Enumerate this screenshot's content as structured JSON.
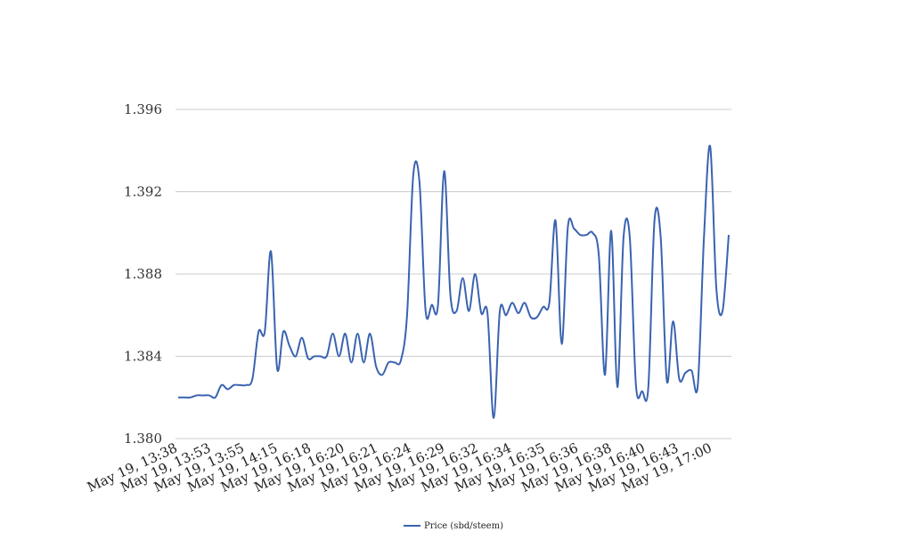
{
  "chart_data": {
    "type": "line",
    "title": "",
    "xlabel": "",
    "ylabel": "",
    "ylim": [
      1.38,
      1.396
    ],
    "yticks": [
      1.38,
      1.384,
      1.388,
      1.392,
      1.396
    ],
    "ytick_labels": [
      "1.380",
      "1.384",
      "1.388",
      "1.392",
      "1.396"
    ],
    "grid": "horizontal",
    "legend_position": "bottom-center",
    "line_color": "#3a63b0",
    "grid_color": "#cccccc",
    "xtick_labels": [
      "May 19, 13:38",
      "May 19, 13:53",
      "May 19, 13:55",
      "May 19, 14:15",
      "May 19, 16:18",
      "May 19, 16:20",
      "May 19, 16:21",
      "May 19, 16:24",
      "May 19, 16:29",
      "May 19, 16:32",
      "May 19, 16:34",
      "May 19, 16:35",
      "May 19, 16:36",
      "May 19, 16:38",
      "May 19, 16:40",
      "May 19, 16:43",
      "May 19, 17:00"
    ],
    "series": [
      {
        "name": "Price (sbd/steem)",
        "values": [
          1.382,
          1.382,
          1.382,
          1.3821,
          1.3821,
          1.3821,
          1.382,
          1.3826,
          1.3824,
          1.3826,
          1.3826,
          1.3826,
          1.3829,
          1.3852,
          1.3852,
          1.3891,
          1.3834,
          1.3852,
          1.3845,
          1.384,
          1.3849,
          1.3839,
          1.384,
          1.384,
          1.384,
          1.3851,
          1.384,
          1.3851,
          1.3837,
          1.3851,
          1.3837,
          1.3851,
          1.3835,
          1.3831,
          1.3837,
          1.3837,
          1.3838,
          1.386,
          1.3928,
          1.3925,
          1.3862,
          1.3865,
          1.3865,
          1.393,
          1.387,
          1.3862,
          1.3878,
          1.3862,
          1.388,
          1.3861,
          1.3861,
          1.381,
          1.3862,
          1.386,
          1.3866,
          1.3861,
          1.3866,
          1.3859,
          1.3859,
          1.3864,
          1.3866,
          1.3906,
          1.3846,
          1.3903,
          1.3902,
          1.3899,
          1.3899,
          1.39,
          1.3889,
          1.3831,
          1.3901,
          1.3825,
          1.3898,
          1.3898,
          1.3826,
          1.3823,
          1.3825,
          1.3906,
          1.3898,
          1.3828,
          1.3857,
          1.3829,
          1.3832,
          1.3833,
          1.3826,
          1.3898,
          1.3942,
          1.3873,
          1.3862,
          1.3899
        ]
      }
    ]
  }
}
